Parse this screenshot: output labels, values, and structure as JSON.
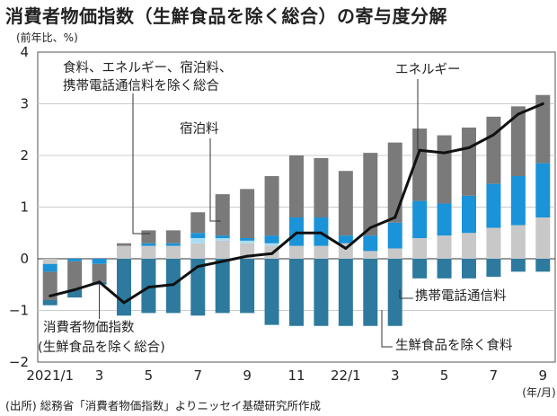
{
  "title": "消費者物価指数（生鮮食品を除く総合）の寄与度分解",
  "unit": "(前年比、%)",
  "source": "(出所) 総務省「消費者物価指数」よりニッセイ基礎研究所作成",
  "colors": {
    "other": "#c8c8c8",
    "accommodation": "#a8dcf4",
    "energy": "#1a93d8",
    "energy_top": "#7a7a7a",
    "mobile": "#2d7a9e",
    "line": "#111111",
    "grid": "#cccccc"
  },
  "chart_data": {
    "type": "bar",
    "stacked": true,
    "categories": [
      "2021/1",
      "2",
      "3",
      "4",
      "5",
      "6",
      "7",
      "8",
      "9",
      "10",
      "11",
      "12",
      "22/1",
      "2",
      "3",
      "4",
      "5",
      "6",
      "7",
      "8",
      "9"
    ],
    "x_tick_labels": [
      "2021/1",
      "3",
      "5",
      "7",
      "9",
      "11",
      "22/1",
      "3",
      "5",
      "7",
      "9"
    ],
    "x_unit": "(年/月)",
    "ylim": [
      -2,
      4
    ],
    "y_ticks": [
      -2,
      -1,
      0,
      1,
      2,
      3,
      4
    ],
    "y_tick_labels": [
      "−2",
      "−1",
      "0",
      "1",
      "2",
      "3",
      "4"
    ],
    "series": [
      {
        "name": "食料、エネルギー、宿泊料、携帯電話通信料を除く総合",
        "values": [
          -0.1,
          0.0,
          0.0,
          0.25,
          0.25,
          0.25,
          0.3,
          0.35,
          0.3,
          0.25,
          0.25,
          0.25,
          0.3,
          0.15,
          0.2,
          0.4,
          0.45,
          0.5,
          0.6,
          0.65,
          0.8
        ]
      },
      {
        "name": "宿泊料",
        "values": [
          0.0,
          0.0,
          0.0,
          0.0,
          0.0,
          0.0,
          0.1,
          0.05,
          0.05,
          0.05,
          0.0,
          0.0,
          0.0,
          0.0,
          0.0,
          0.0,
          0.0,
          0.0,
          0.0,
          0.0,
          0.0
        ]
      },
      {
        "name": "エネルギー",
        "values": [
          -0.15,
          -0.05,
          -0.1,
          0.0,
          0.05,
          0.05,
          0.1,
          0.05,
          0.05,
          0.15,
          0.55,
          0.55,
          0.15,
          0.3,
          0.5,
          0.72,
          0.62,
          0.72,
          0.85,
          0.95,
          1.05
        ]
      },
      {
        "name": "生鮮食品を除く食料",
        "values": [
          -0.55,
          -0.55,
          -0.35,
          0.05,
          0.25,
          0.25,
          0.4,
          0.8,
          0.95,
          1.15,
          1.2,
          1.15,
          1.25,
          1.6,
          1.55,
          1.4,
          1.32,
          1.32,
          1.3,
          1.35,
          1.32
        ]
      },
      {
        "name": "携帯電話通信料",
        "values": [
          0.0,
          0.0,
          0.0,
          0.0,
          0.0,
          0.0,
          -0.2,
          -0.2,
          -0.2,
          -0.2,
          -0.2,
          -0.2,
          -0.2,
          -0.2,
          -0.2,
          -0.2,
          -0.2,
          -0.2,
          -0.2,
          -0.2,
          -0.2
        ]
      }
    ],
    "negative_mobile": [
      -0.1,
      -0.15,
      -0.05,
      -1.1,
      -1.05,
      -1.05,
      -1.1,
      -1.05,
      -1.05,
      -1.28,
      -1.3,
      -1.3,
      -1.3,
      -1.3,
      -1.3,
      -0.38,
      -0.38,
      -0.38,
      -0.35,
      -0.25,
      -0.25
    ],
    "line": {
      "name": "消費者物価指数（生鮮食品を除く総合）",
      "values": [
        -0.72,
        -0.6,
        -0.45,
        -0.85,
        -0.55,
        -0.5,
        -0.15,
        -0.05,
        0.05,
        0.1,
        0.5,
        0.5,
        0.2,
        0.6,
        0.8,
        2.1,
        2.05,
        2.15,
        2.4,
        2.8,
        3.0
      ]
    }
  },
  "annotations": {
    "other_line1": "食料、エネルギー、宿泊料、",
    "other_line2": "携帯電話通信料を除く総合",
    "accommodation": "宿泊料",
    "energy": "エネルギー",
    "mobile": "携帯電話通信料",
    "food": "生鮮食品を除く食料",
    "cpi_line1": "消費者物価指数",
    "cpi_line2": "(生鮮食品を除く総合)"
  }
}
